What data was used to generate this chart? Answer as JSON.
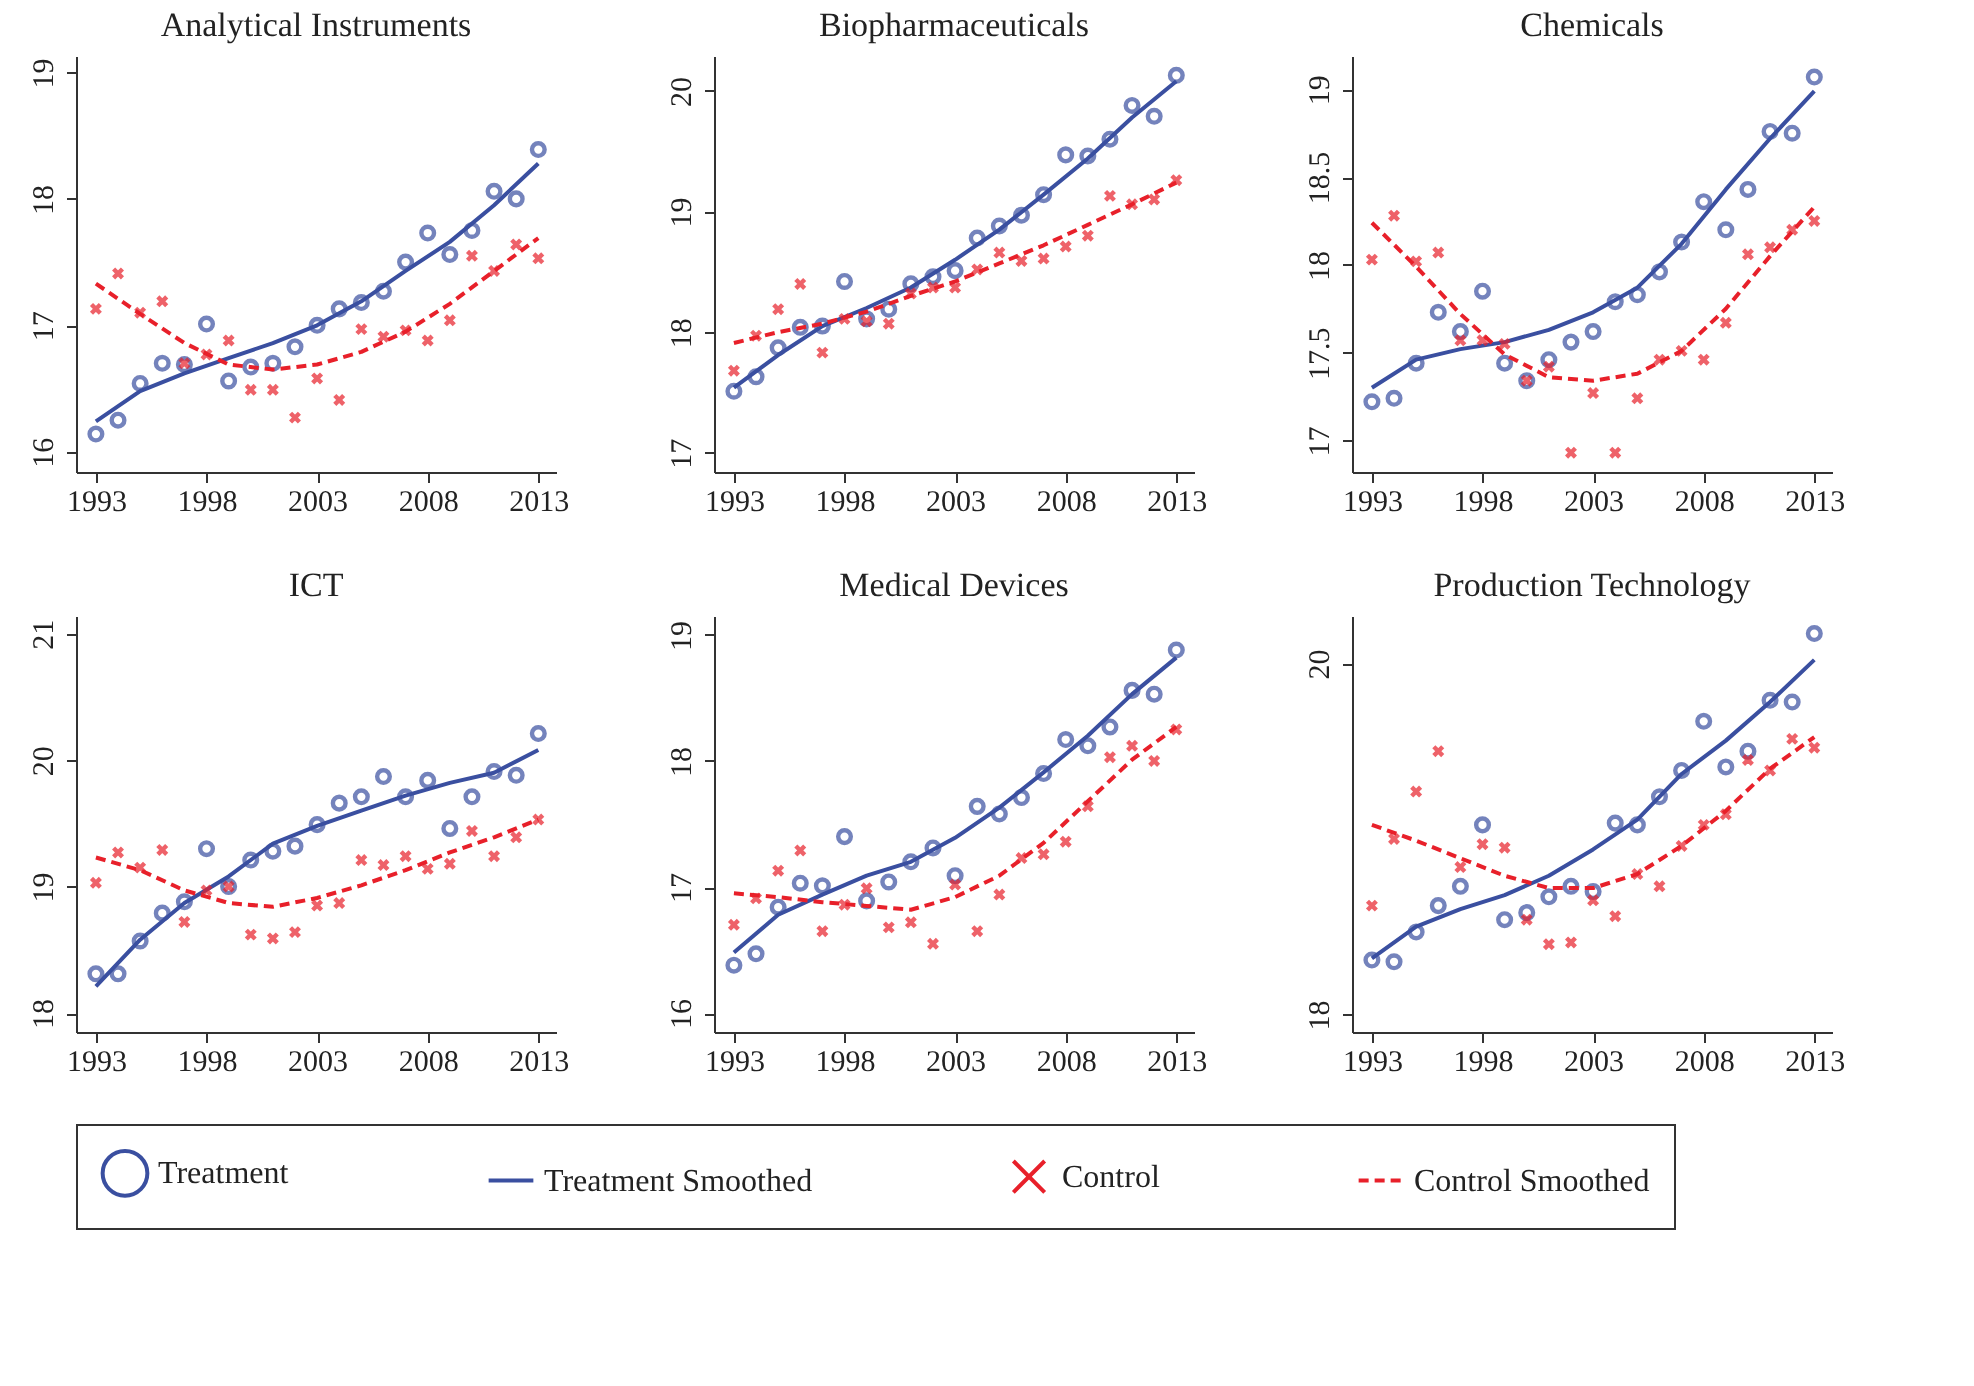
{
  "chart_data": [
    {
      "type": "scatter",
      "title": "Analytical Instruments",
      "legend": "bottom",
      "grid": false,
      "xlim": [
        1992.1,
        2013.8
      ],
      "xticks": [
        1993,
        1998,
        2003,
        2008,
        2013
      ],
      "ylim": [
        15.84,
        19.13
      ],
      "yticks": [
        16,
        17,
        18,
        19
      ],
      "x": [
        1993,
        1994,
        1995,
        1996,
        1997,
        1998,
        1999,
        2000,
        2001,
        2002,
        2003,
        2004,
        2005,
        2006,
        2007,
        2008,
        2009,
        2010,
        2011,
        2012,
        2013
      ],
      "series": [
        {
          "name": "Treatment",
          "type": "scatter",
          "marker": "circle",
          "color": "#3a4fa0",
          "values": [
            16.14,
            16.25,
            16.54,
            16.7,
            16.69,
            17.01,
            16.56,
            16.67,
            16.7,
            16.83,
            17.0,
            17.13,
            17.18,
            17.27,
            17.5,
            17.73,
            17.56,
            17.75,
            18.06,
            18.0,
            18.39
          ]
        },
        {
          "name": "Treatment Smoothed",
          "type": "line",
          "line_style": "solid",
          "color": "#3a4fa0",
          "x": [
            1993,
            1995,
            1997,
            1999,
            2001,
            2003,
            2005,
            2007,
            2009,
            2011,
            2013
          ],
          "values": [
            16.24,
            16.48,
            16.62,
            16.74,
            16.86,
            17.0,
            17.19,
            17.43,
            17.66,
            17.95,
            18.28
          ]
        },
        {
          "name": "Control",
          "type": "scatter",
          "marker": "cross",
          "color": "#e8202a",
          "values": [
            17.13,
            17.41,
            17.1,
            17.19,
            16.7,
            16.77,
            16.88,
            16.49,
            16.49,
            16.27,
            16.58,
            16.41,
            16.97,
            16.91,
            16.96,
            16.88,
            17.04,
            17.55,
            17.43,
            17.64,
            17.53
          ]
        },
        {
          "name": "Control Smoothed",
          "type": "line",
          "line_style": "dashed",
          "color": "#e8202a",
          "x": [
            1993,
            1995,
            1997,
            1999,
            2001,
            2003,
            2005,
            2007,
            2009,
            2011,
            2013
          ],
          "values": [
            17.33,
            17.09,
            16.86,
            16.69,
            16.65,
            16.69,
            16.79,
            16.95,
            17.17,
            17.43,
            17.69
          ]
        }
      ]
    },
    {
      "type": "scatter",
      "title": "Biopharmaceuticals",
      "legend": "bottom",
      "grid": false,
      "xlim": [
        1992.1,
        2013.8
      ],
      "xticks": [
        1993,
        1998,
        2003,
        2008,
        2013
      ],
      "ylim": [
        16.84,
        20.29
      ],
      "yticks": [
        17,
        18,
        19,
        20
      ],
      "x": [
        1993,
        1994,
        1995,
        1996,
        1997,
        1998,
        1999,
        2000,
        2001,
        2002,
        2003,
        2004,
        2005,
        2006,
        2007,
        2008,
        2009,
        2010,
        2011,
        2012,
        2013
      ],
      "series": [
        {
          "name": "Treatment",
          "type": "scatter",
          "marker": "circle",
          "color": "#3a4fa0",
          "values": [
            17.51,
            17.63,
            17.87,
            18.04,
            18.05,
            18.42,
            18.11,
            18.19,
            18.4,
            18.46,
            18.51,
            18.78,
            18.88,
            18.97,
            19.14,
            19.47,
            19.46,
            19.6,
            19.88,
            19.79,
            20.13
          ]
        },
        {
          "name": "Treatment Smoothed",
          "type": "line",
          "line_style": "solid",
          "color": "#3a4fa0",
          "x": [
            1993,
            1995,
            1997,
            1999,
            2001,
            2003,
            2005,
            2007,
            2009,
            2011,
            2013
          ],
          "values": [
            17.54,
            17.81,
            18.05,
            18.2,
            18.37,
            18.6,
            18.85,
            19.14,
            19.44,
            19.78,
            20.08
          ]
        },
        {
          "name": "Control",
          "type": "scatter",
          "marker": "cross",
          "color": "#e8202a",
          "values": [
            17.68,
            17.97,
            18.19,
            18.4,
            17.83,
            18.11,
            18.09,
            18.07,
            18.32,
            18.37,
            18.37,
            18.52,
            18.66,
            18.59,
            18.61,
            18.71,
            18.8,
            19.13,
            19.06,
            19.1,
            19.26
          ]
        },
        {
          "name": "Control Smoothed",
          "type": "line",
          "line_style": "dashed",
          "color": "#e8202a",
          "x": [
            1993,
            1995,
            1997,
            1999,
            2001,
            2003,
            2005,
            2007,
            2009,
            2011,
            2013
          ],
          "values": [
            17.91,
            18.0,
            18.07,
            18.17,
            18.3,
            18.42,
            18.57,
            18.72,
            18.89,
            19.06,
            19.24
          ]
        }
      ]
    },
    {
      "type": "scatter",
      "title": "Chemicals",
      "legend": "bottom",
      "grid": false,
      "xlim": [
        1992.1,
        2013.8
      ],
      "xticks": [
        1993,
        1998,
        2003,
        2008,
        2013
      ],
      "ylim": [
        16.82,
        19.19
      ],
      "yticks": [
        17,
        17.5,
        18,
        18.5,
        19
      ],
      "x": [
        1993,
        1994,
        1995,
        1996,
        1997,
        1998,
        1999,
        2000,
        2001,
        2002,
        2003,
        2004,
        2005,
        2006,
        2007,
        2008,
        2009,
        2010,
        2011,
        2012,
        2013
      ],
      "series": [
        {
          "name": "Treatment",
          "type": "scatter",
          "marker": "circle",
          "color": "#3a4fa0",
          "values": [
            17.22,
            17.24,
            17.44,
            17.73,
            17.62,
            17.85,
            17.44,
            17.34,
            17.46,
            17.56,
            17.62,
            17.79,
            17.83,
            17.96,
            18.13,
            18.36,
            18.2,
            18.43,
            18.76,
            18.75,
            19.07
          ]
        },
        {
          "name": "Treatment Smoothed",
          "type": "line",
          "line_style": "solid",
          "color": "#3a4fa0",
          "x": [
            1993,
            1995,
            1997,
            1999,
            2001,
            2003,
            2005,
            2007,
            2009,
            2011,
            2013
          ],
          "values": [
            17.3,
            17.46,
            17.52,
            17.56,
            17.63,
            17.73,
            17.87,
            18.12,
            18.43,
            18.72,
            18.99
          ]
        },
        {
          "name": "Control",
          "type": "scatter",
          "marker": "cross",
          "color": "#e8202a",
          "values": [
            18.03,
            18.28,
            18.02,
            18.07,
            17.57,
            17.57,
            17.55,
            17.34,
            17.42,
            16.93,
            17.27,
            16.93,
            17.24,
            17.46,
            17.51,
            17.46,
            17.67,
            18.06,
            18.1,
            18.2,
            18.25
          ]
        },
        {
          "name": "Control Smoothed",
          "type": "line",
          "line_style": "dashed",
          "color": "#e8202a",
          "x": [
            1993,
            1995,
            1997,
            1999,
            2001,
            2003,
            2005,
            2007,
            2009,
            2011,
            2013
          ],
          "values": [
            18.24,
            17.99,
            17.72,
            17.49,
            17.36,
            17.34,
            17.38,
            17.51,
            17.75,
            18.05,
            18.33
          ]
        }
      ]
    },
    {
      "type": "scatter",
      "title": "ICT",
      "legend": "bottom",
      "grid": false,
      "xlim": [
        1992.1,
        2013.8
      ],
      "xticks": [
        1993,
        1998,
        2003,
        2008,
        2013
      ],
      "ylim": [
        17.85,
        21.14
      ],
      "yticks": [
        18,
        19,
        20,
        21
      ],
      "x": [
        1993,
        1994,
        1995,
        1996,
        1997,
        1998,
        1999,
        2000,
        2001,
        2002,
        2003,
        2004,
        2005,
        2006,
        2007,
        2008,
        2009,
        2010,
        2011,
        2012,
        2013
      ],
      "series": [
        {
          "name": "Treatment",
          "type": "scatter",
          "marker": "circle",
          "color": "#3a4fa0",
          "values": [
            18.31,
            18.31,
            18.57,
            18.79,
            18.88,
            19.3,
            19.0,
            19.21,
            19.28,
            19.32,
            19.49,
            19.66,
            19.71,
            19.87,
            19.71,
            19.84,
            19.46,
            19.71,
            19.91,
            19.88,
            20.21
          ]
        },
        {
          "name": "Treatment Smoothed",
          "type": "line",
          "line_style": "solid",
          "color": "#3a4fa0",
          "x": [
            1993,
            1995,
            1997,
            1999,
            2001,
            2003,
            2005,
            2007,
            2009,
            2011,
            2013
          ],
          "values": [
            18.21,
            18.58,
            18.87,
            19.08,
            19.34,
            19.48,
            19.6,
            19.72,
            19.82,
            19.9,
            20.08
          ]
        },
        {
          "name": "Control",
          "type": "scatter",
          "marker": "cross",
          "color": "#e8202a",
          "values": [
            19.03,
            19.27,
            19.15,
            19.29,
            18.72,
            18.97,
            19.0,
            18.62,
            18.59,
            18.64,
            18.85,
            18.87,
            19.21,
            19.17,
            19.24,
            19.14,
            19.18,
            19.44,
            19.24,
            19.39,
            19.53
          ]
        },
        {
          "name": "Control Smoothed",
          "type": "line",
          "line_style": "dashed",
          "color": "#e8202a",
          "x": [
            1993,
            1995,
            1997,
            1999,
            2001,
            2003,
            2005,
            2007,
            2009,
            2011,
            2013
          ],
          "values": [
            19.23,
            19.13,
            18.97,
            18.87,
            18.84,
            18.91,
            19.01,
            19.13,
            19.27,
            19.39,
            19.53
          ]
        }
      ]
    },
    {
      "type": "scatter",
      "title": "Medical Devices",
      "legend": "bottom",
      "grid": false,
      "xlim": [
        1992.1,
        2013.8
      ],
      "xticks": [
        1993,
        1998,
        2003,
        2008,
        2013
      ],
      "ylim": [
        15.85,
        19.15
      ],
      "yticks": [
        16,
        17,
        18,
        19
      ],
      "x": [
        1993,
        1994,
        1995,
        1996,
        1997,
        1998,
        1999,
        2000,
        2001,
        2002,
        2003,
        2004,
        2005,
        2006,
        2007,
        2008,
        2009,
        2010,
        2011,
        2012,
        2013
      ],
      "series": [
        {
          "name": "Treatment",
          "type": "scatter",
          "marker": "circle",
          "color": "#3a4fa0",
          "values": [
            16.38,
            16.47,
            16.84,
            17.03,
            17.01,
            17.4,
            16.89,
            17.04,
            17.2,
            17.31,
            17.09,
            17.64,
            17.58,
            17.71,
            17.9,
            18.17,
            18.12,
            18.27,
            18.56,
            18.53,
            18.88
          ]
        },
        {
          "name": "Treatment Smoothed",
          "type": "line",
          "line_style": "solid",
          "color": "#3a4fa0",
          "x": [
            1993,
            1995,
            1997,
            1999,
            2001,
            2003,
            2005,
            2007,
            2009,
            2011,
            2013
          ],
          "values": [
            16.48,
            16.78,
            16.94,
            17.09,
            17.2,
            17.39,
            17.63,
            17.91,
            18.2,
            18.53,
            18.82
          ]
        },
        {
          "name": "Control",
          "type": "scatter",
          "marker": "cross",
          "color": "#e8202a",
          "values": [
            16.7,
            16.91,
            17.13,
            17.29,
            16.65,
            16.86,
            16.99,
            16.68,
            16.72,
            16.55,
            17.02,
            16.65,
            16.94,
            17.23,
            17.26,
            17.36,
            17.64,
            18.03,
            18.12,
            18.0,
            18.25
          ]
        },
        {
          "name": "Control Smoothed",
          "type": "line",
          "line_style": "dashed",
          "color": "#e8202a",
          "x": [
            1993,
            1995,
            1997,
            1999,
            2001,
            2003,
            2005,
            2007,
            2009,
            2011,
            2013
          ],
          "values": [
            16.95,
            16.92,
            16.88,
            16.85,
            16.82,
            16.92,
            17.09,
            17.35,
            17.68,
            18.01,
            18.27
          ]
        }
      ]
    },
    {
      "type": "scatter",
      "title": "Production Technology",
      "legend": "bottom",
      "grid": false,
      "xlim": [
        1992.1,
        2013.8
      ],
      "xticks": [
        1993,
        1998,
        2003,
        2008,
        2013
      ],
      "ylim": [
        17.9,
        20.27
      ],
      "yticks": [
        18,
        20
      ],
      "x": [
        1993,
        1994,
        1995,
        1996,
        1997,
        1998,
        1999,
        2000,
        2001,
        2002,
        2003,
        2004,
        2005,
        2006,
        2007,
        2008,
        2009,
        2010,
        2011,
        2012,
        2013
      ],
      "series": [
        {
          "name": "Treatment",
          "type": "scatter",
          "marker": "circle",
          "color": "#3a4fa0",
          "values": [
            18.31,
            18.3,
            18.47,
            18.62,
            18.73,
            19.08,
            18.54,
            18.58,
            18.67,
            18.73,
            18.7,
            19.09,
            19.08,
            19.24,
            19.39,
            19.67,
            19.41,
            19.5,
            19.79,
            19.78,
            20.17
          ]
        },
        {
          "name": "Treatment Smoothed",
          "type": "line",
          "line_style": "solid",
          "color": "#3a4fa0",
          "x": [
            1993,
            1995,
            1997,
            1999,
            2001,
            2003,
            2005,
            2007,
            2009,
            2011,
            2013
          ],
          "values": [
            18.32,
            18.5,
            18.6,
            18.68,
            18.79,
            18.94,
            19.11,
            19.37,
            19.56,
            19.78,
            20.02
          ]
        },
        {
          "name": "Control",
          "type": "scatter",
          "marker": "cross",
          "color": "#e8202a",
          "values": [
            18.62,
            19.0,
            19.27,
            19.5,
            18.84,
            18.97,
            18.95,
            18.54,
            18.4,
            18.41,
            18.65,
            18.56,
            18.8,
            18.73,
            18.96,
            19.08,
            19.14,
            19.45,
            19.39,
            19.57,
            19.52
          ]
        },
        {
          "name": "Control Smoothed",
          "type": "line",
          "line_style": "dashed",
          "color": "#e8202a",
          "x": [
            1993,
            1995,
            1997,
            1999,
            2001,
            2003,
            2005,
            2007,
            2009,
            2011,
            2013
          ],
          "values": [
            19.08,
            18.99,
            18.89,
            18.79,
            18.72,
            18.72,
            18.8,
            18.96,
            19.16,
            19.4,
            19.58
          ]
        }
      ]
    }
  ]
}
